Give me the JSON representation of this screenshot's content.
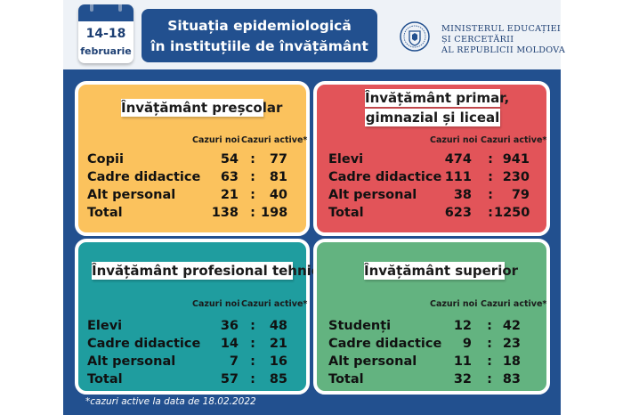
{
  "calendar": {
    "dates": "14-18",
    "month": "februarie"
  },
  "title": {
    "line1": "Situația epidemiologică",
    "line2": "în instituțiile de învățământ"
  },
  "ministry": {
    "line1": "MINISTERUL EDUCAȚIEI",
    "line2": "ȘI CERCETĂRII",
    "line3": "AL REPUBLICII MOLDOVA"
  },
  "colors": {
    "header_blue": "#22508f",
    "presc": "#fbc25d",
    "primar": "#e25459",
    "prof": "#1f9d9f",
    "superior": "#63b380"
  },
  "col_new": "Cazuri noi",
  "col_active": "Cazuri active*",
  "separator": ":",
  "cards": {
    "prescolar": {
      "label": "Învățământ preșcolar",
      "rows": [
        {
          "label": "Copii",
          "new": "54",
          "active": "77"
        },
        {
          "label": "Cadre didactice",
          "new": "63",
          "active": "81"
        },
        {
          "label": "Alt personal",
          "new": "21",
          "active": "40"
        },
        {
          "label": "Total",
          "new": "138",
          "active": "198"
        }
      ]
    },
    "primar": {
      "label1": "Învățământ primar,",
      "label2": "gimnazial și liceal",
      "rows": [
        {
          "label": "Elevi",
          "new": "474",
          "active": "941"
        },
        {
          "label": "Cadre didactice",
          "new": "111",
          "active": "230"
        },
        {
          "label": "Alt personal",
          "new": "38",
          "active": "79"
        },
        {
          "label": "Total",
          "new": "623",
          "active": "1250"
        }
      ]
    },
    "profesional": {
      "label": "Învățământ profesional tehnic",
      "rows": [
        {
          "label": "Elevi",
          "new": "36",
          "active": "48"
        },
        {
          "label": "Cadre didactice",
          "new": "14",
          "active": "21"
        },
        {
          "label": "Alt personal",
          "new": "7",
          "active": "16"
        },
        {
          "label": "Total",
          "new": "57",
          "active": "85"
        }
      ]
    },
    "superior": {
      "label": "Învățământ superior",
      "rows": [
        {
          "label": "Studenți",
          "new": "12",
          "active": "42"
        },
        {
          "label": "Cadre didactice",
          "new": "9",
          "active": "23"
        },
        {
          "label": "Alt personal",
          "new": "11",
          "active": "18"
        },
        {
          "label": "Total",
          "new": "32",
          "active": "83"
        }
      ]
    }
  },
  "footnote": "*cazuri active la data de 18.02.2022"
}
